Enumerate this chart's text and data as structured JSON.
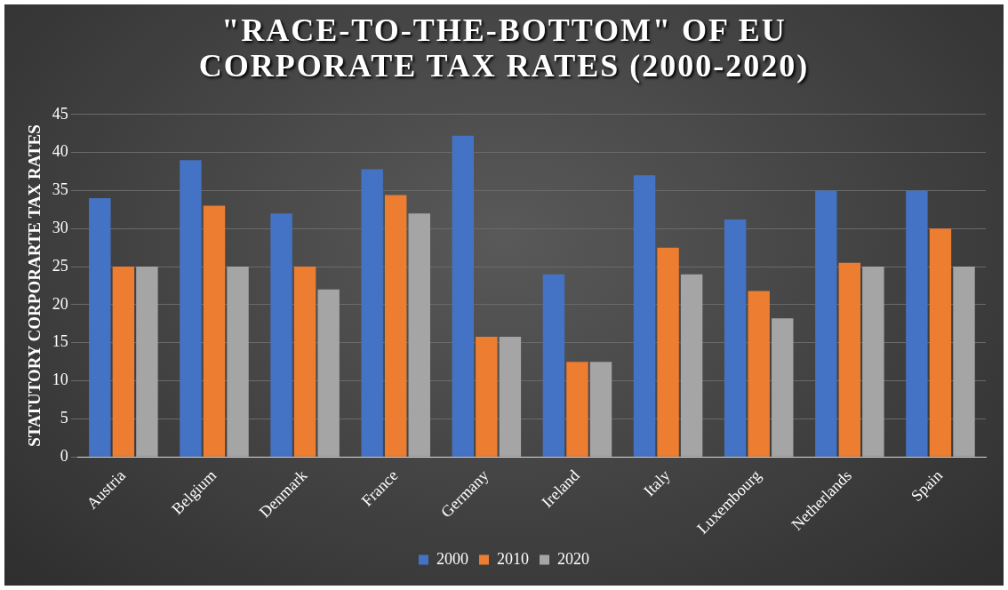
{
  "chart_data": {
    "type": "bar",
    "title": "\"RACE-TO-THE-BOTTOM\" OF EU CORPORATE TAX RATES (2000-2020)",
    "ylabel": "STATUTORY CORPORARTE TAX RATES",
    "categories": [
      "Austria",
      "Belgium",
      "Denmark",
      "France",
      "Germany",
      "Ireland",
      "Italy",
      "Luxembourg",
      "Netherlands",
      "Spain"
    ],
    "series": [
      {
        "name": "2000",
        "color": "#4472c4",
        "values": [
          34,
          39,
          32,
          37.8,
          42.2,
          24,
          37,
          31.2,
          35,
          35
        ]
      },
      {
        "name": "2010",
        "color": "#ed7d31",
        "values": [
          25,
          33,
          25,
          34.4,
          15.8,
          12.5,
          27.5,
          21.8,
          25.5,
          30
        ]
      },
      {
        "name": "2020",
        "color": "#a5a5a5",
        "values": [
          25,
          25,
          22,
          32,
          15.8,
          12.5,
          24,
          18.2,
          25,
          25
        ]
      }
    ],
    "ylim": [
      0,
      45
    ],
    "yticks": [
      0,
      5,
      10,
      15,
      20,
      25,
      30,
      35,
      40,
      45
    ],
    "grid": "y",
    "legend": "bottom"
  }
}
